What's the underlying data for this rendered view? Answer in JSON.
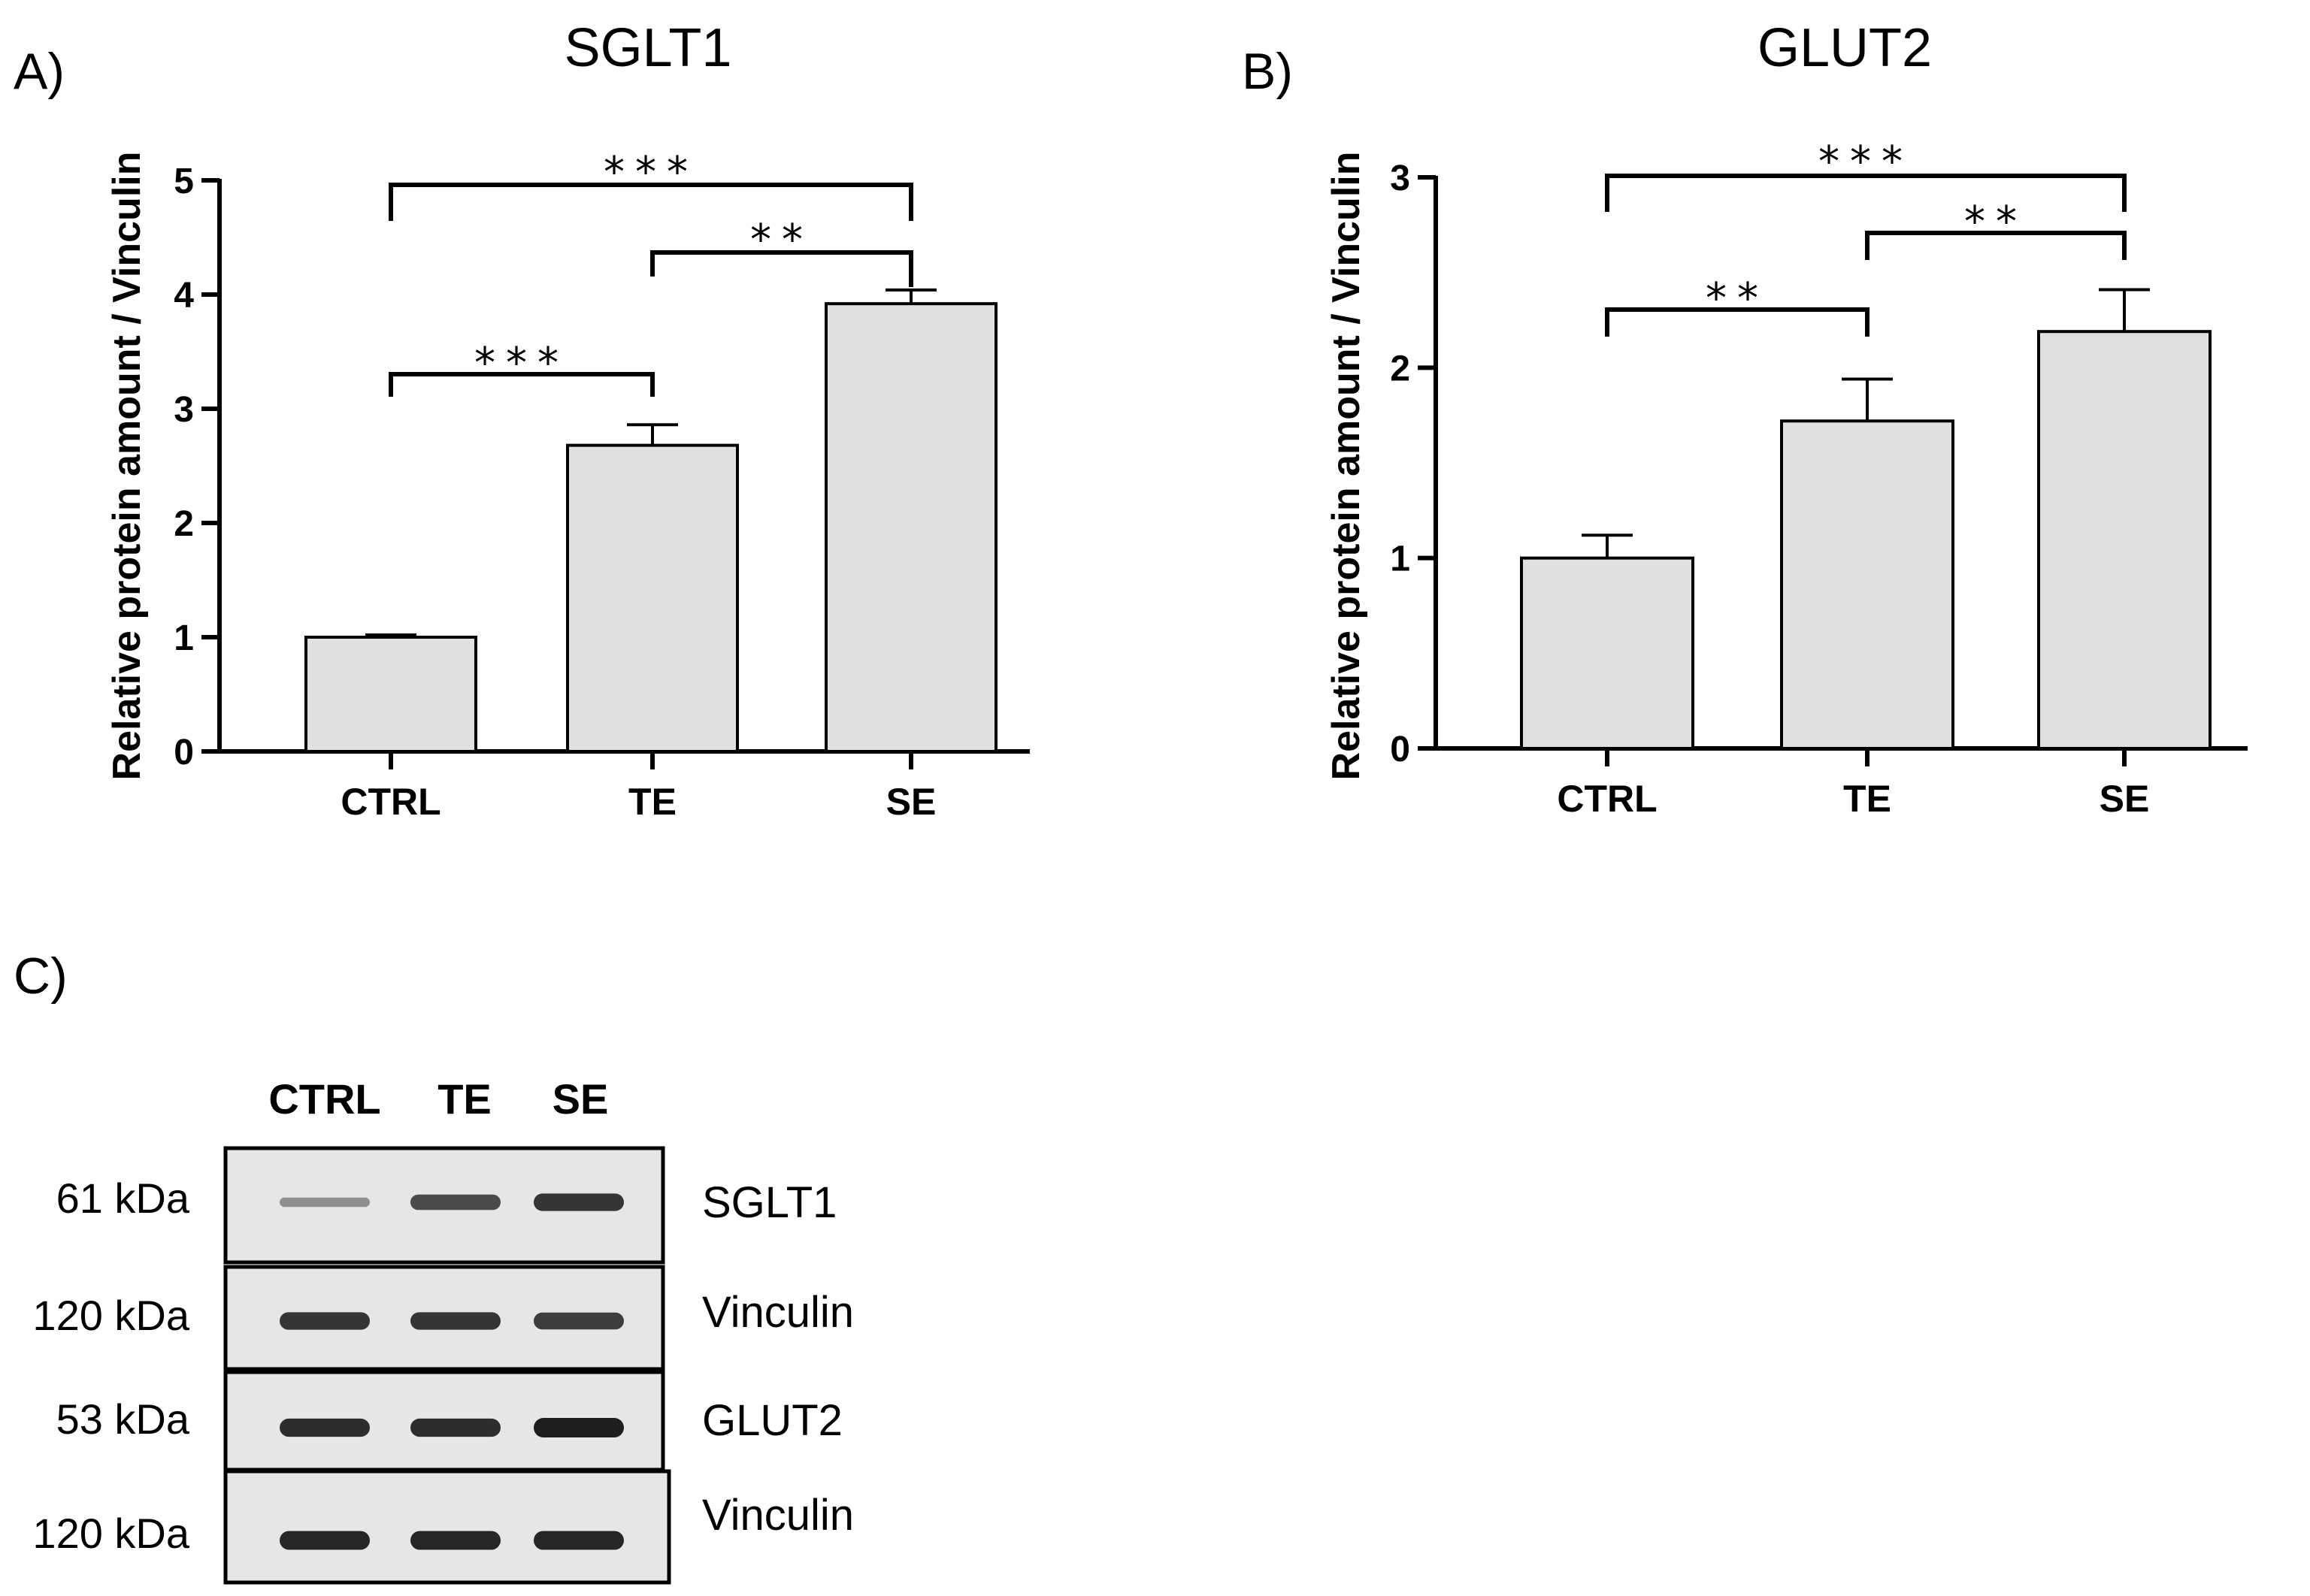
{
  "panels": {
    "a": "A)",
    "b": "B)",
    "c": "C)"
  },
  "colors": {
    "bar_fill": "#e0e0e0",
    "stroke": "#000000",
    "blot_bg": "#e6e6e6",
    "band": "#1e1e1e"
  },
  "chart_data": [
    {
      "type": "bar",
      "title": "SGLT1",
      "ylabel": "Relative protein amount / Vinculin",
      "xlabel": "",
      "categories": [
        "CTRL",
        "TE",
        "SE"
      ],
      "values": [
        1.0,
        2.68,
        3.92
      ],
      "errors": [
        0.02,
        0.18,
        0.12
      ],
      "ylim": [
        0,
        5
      ],
      "yticks": [
        "0",
        "1",
        "2",
        "3",
        "4",
        "5"
      ],
      "significance": [
        {
          "from": "CTRL",
          "to": "TE",
          "label": "***"
        },
        {
          "from": "TE",
          "to": "SE",
          "label": "**"
        },
        {
          "from": "CTRL",
          "to": "SE",
          "label": "***"
        }
      ]
    },
    {
      "type": "bar",
      "title": "GLUT2",
      "ylabel": "Relative protein amount / Vinculin",
      "xlabel": "",
      "categories": [
        "CTRL",
        "TE",
        "SE"
      ],
      "values": [
        1.0,
        1.72,
        2.19
      ],
      "errors": [
        0.12,
        0.22,
        0.22
      ],
      "ylim": [
        0,
        3
      ],
      "yticks": [
        "0",
        "1",
        "2",
        "3"
      ],
      "significance": [
        {
          "from": "CTRL",
          "to": "TE",
          "label": "**"
        },
        {
          "from": "TE",
          "to": "SE",
          "label": "**"
        },
        {
          "from": "CTRL",
          "to": "SE",
          "label": "***"
        }
      ]
    }
  ],
  "blot": {
    "lanes": [
      "CTRL",
      "TE",
      "SE"
    ],
    "rows": [
      {
        "size": "61 kDa",
        "protein": "SGLT1",
        "intensity": [
          0.25,
          0.7,
          0.85
        ]
      },
      {
        "size": "120 kDa",
        "protein": "Vinculin",
        "intensity": [
          0.85,
          0.85,
          0.8
        ]
      },
      {
        "size": "53 kDa",
        "protein": "GLUT2",
        "intensity": [
          0.9,
          0.9,
          1.0
        ]
      },
      {
        "size": "120 kDa",
        "protein": "Vinculin",
        "intensity": [
          0.95,
          0.95,
          0.95
        ]
      }
    ]
  }
}
